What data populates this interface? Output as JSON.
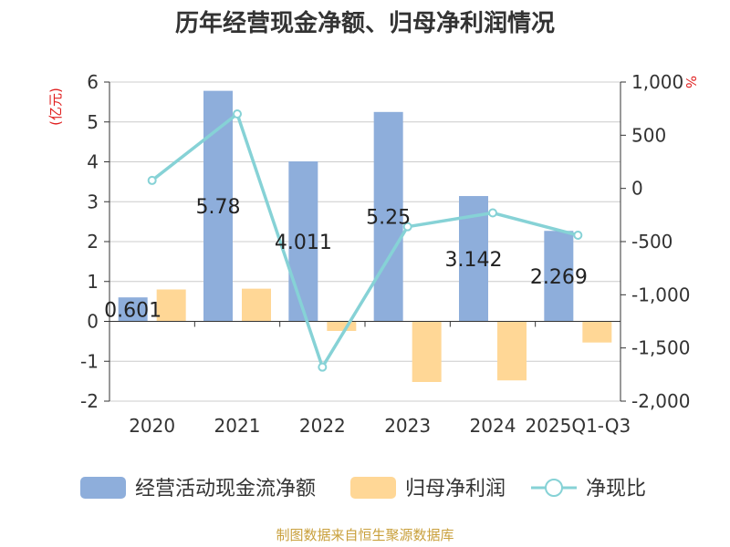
{
  "title": "历年经营现金净额、归母净利润情况",
  "left_unit": "(亿元)",
  "right_unit": "%",
  "source": "制图数据来自恒生聚源数据库",
  "colors": {
    "bar_cash": "#8eaedb",
    "bar_profit": "#ffd796",
    "line": "#86d2d6",
    "unit": "#e02020",
    "source": "#c9a03c",
    "grid": "#cccccc",
    "axis": "#333333"
  },
  "chart_data": {
    "type": "bar",
    "categories": [
      "2020",
      "2021",
      "2022",
      "2023",
      "2024",
      "2025Q1-Q3"
    ],
    "series": [
      {
        "name": "经营活动现金流净额",
        "axis": "left",
        "kind": "bar",
        "values": [
          0.601,
          5.78,
          4.011,
          5.25,
          3.142,
          2.269
        ]
      },
      {
        "name": "归母净利润",
        "axis": "left",
        "kind": "bar",
        "values": [
          0.8,
          0.82,
          -0.24,
          -1.52,
          -1.48,
          -0.53
        ]
      },
      {
        "name": "净现比",
        "axis": "right",
        "kind": "line",
        "values": [
          75,
          700,
          -1680,
          -360,
          -230,
          -440
        ]
      }
    ],
    "data_labels": [
      "0.601",
      "5.78",
      "4.011",
      "5.25",
      "3.142",
      "2.269"
    ],
    "left_axis": {
      "min": -2,
      "max": 6,
      "step": 1,
      "ticks": [
        "-2",
        "-1",
        "0",
        "1",
        "2",
        "3",
        "4",
        "5",
        "6"
      ]
    },
    "right_axis": {
      "min": -2000,
      "max": 1000,
      "step": 500,
      "ticks": [
        "-2,000",
        "-1,500",
        "-1,000",
        "-500",
        "0",
        "500",
        "1,000"
      ]
    },
    "grid": true,
    "legend_position": "bottom"
  }
}
